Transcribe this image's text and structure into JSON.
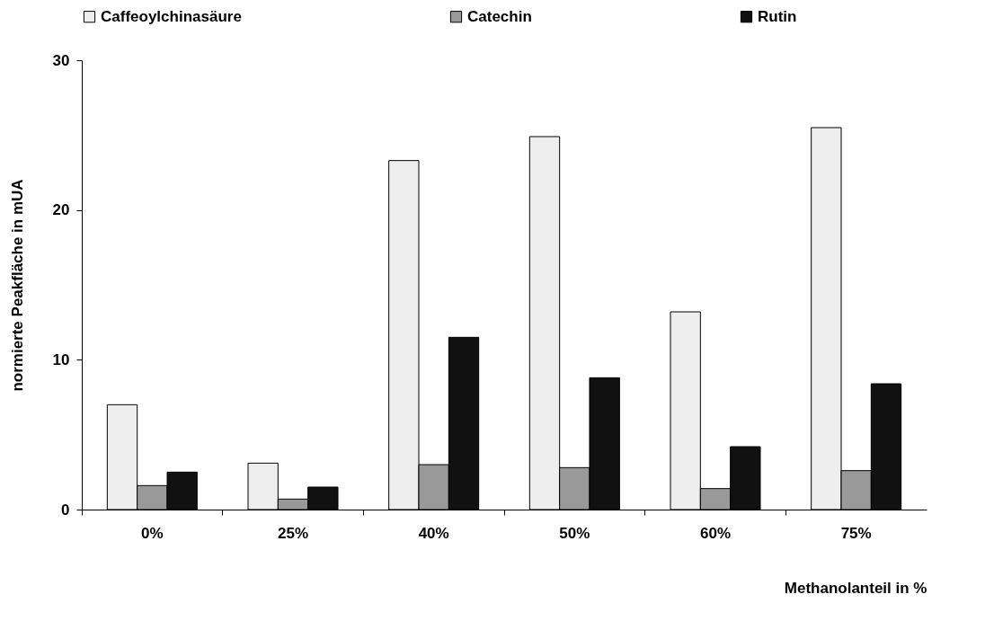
{
  "chart_data": {
    "type": "bar",
    "xlabel": "Methanolanteil in %",
    "ylabel": "normierte Peakfläche in mUA",
    "categories": [
      "0%",
      "25%",
      "40%",
      "50%",
      "60%",
      "75%"
    ],
    "series": [
      {
        "name": "Caffeoylchinasäure",
        "color": "#eeeeee",
        "values": [
          7.0,
          3.1,
          23.3,
          24.9,
          13.2,
          25.5
        ]
      },
      {
        "name": "Catechin",
        "color": "#999999",
        "values": [
          1.6,
          0.7,
          3.0,
          2.8,
          1.4,
          2.6
        ]
      },
      {
        "name": "Rutin",
        "color": "#111111",
        "values": [
          2.5,
          1.5,
          11.5,
          8.8,
          4.2,
          8.4
        ]
      }
    ],
    "ylim": [
      0,
      30
    ],
    "yticks": [
      0,
      10,
      20,
      30
    ],
    "grid": false,
    "legend": "top"
  }
}
